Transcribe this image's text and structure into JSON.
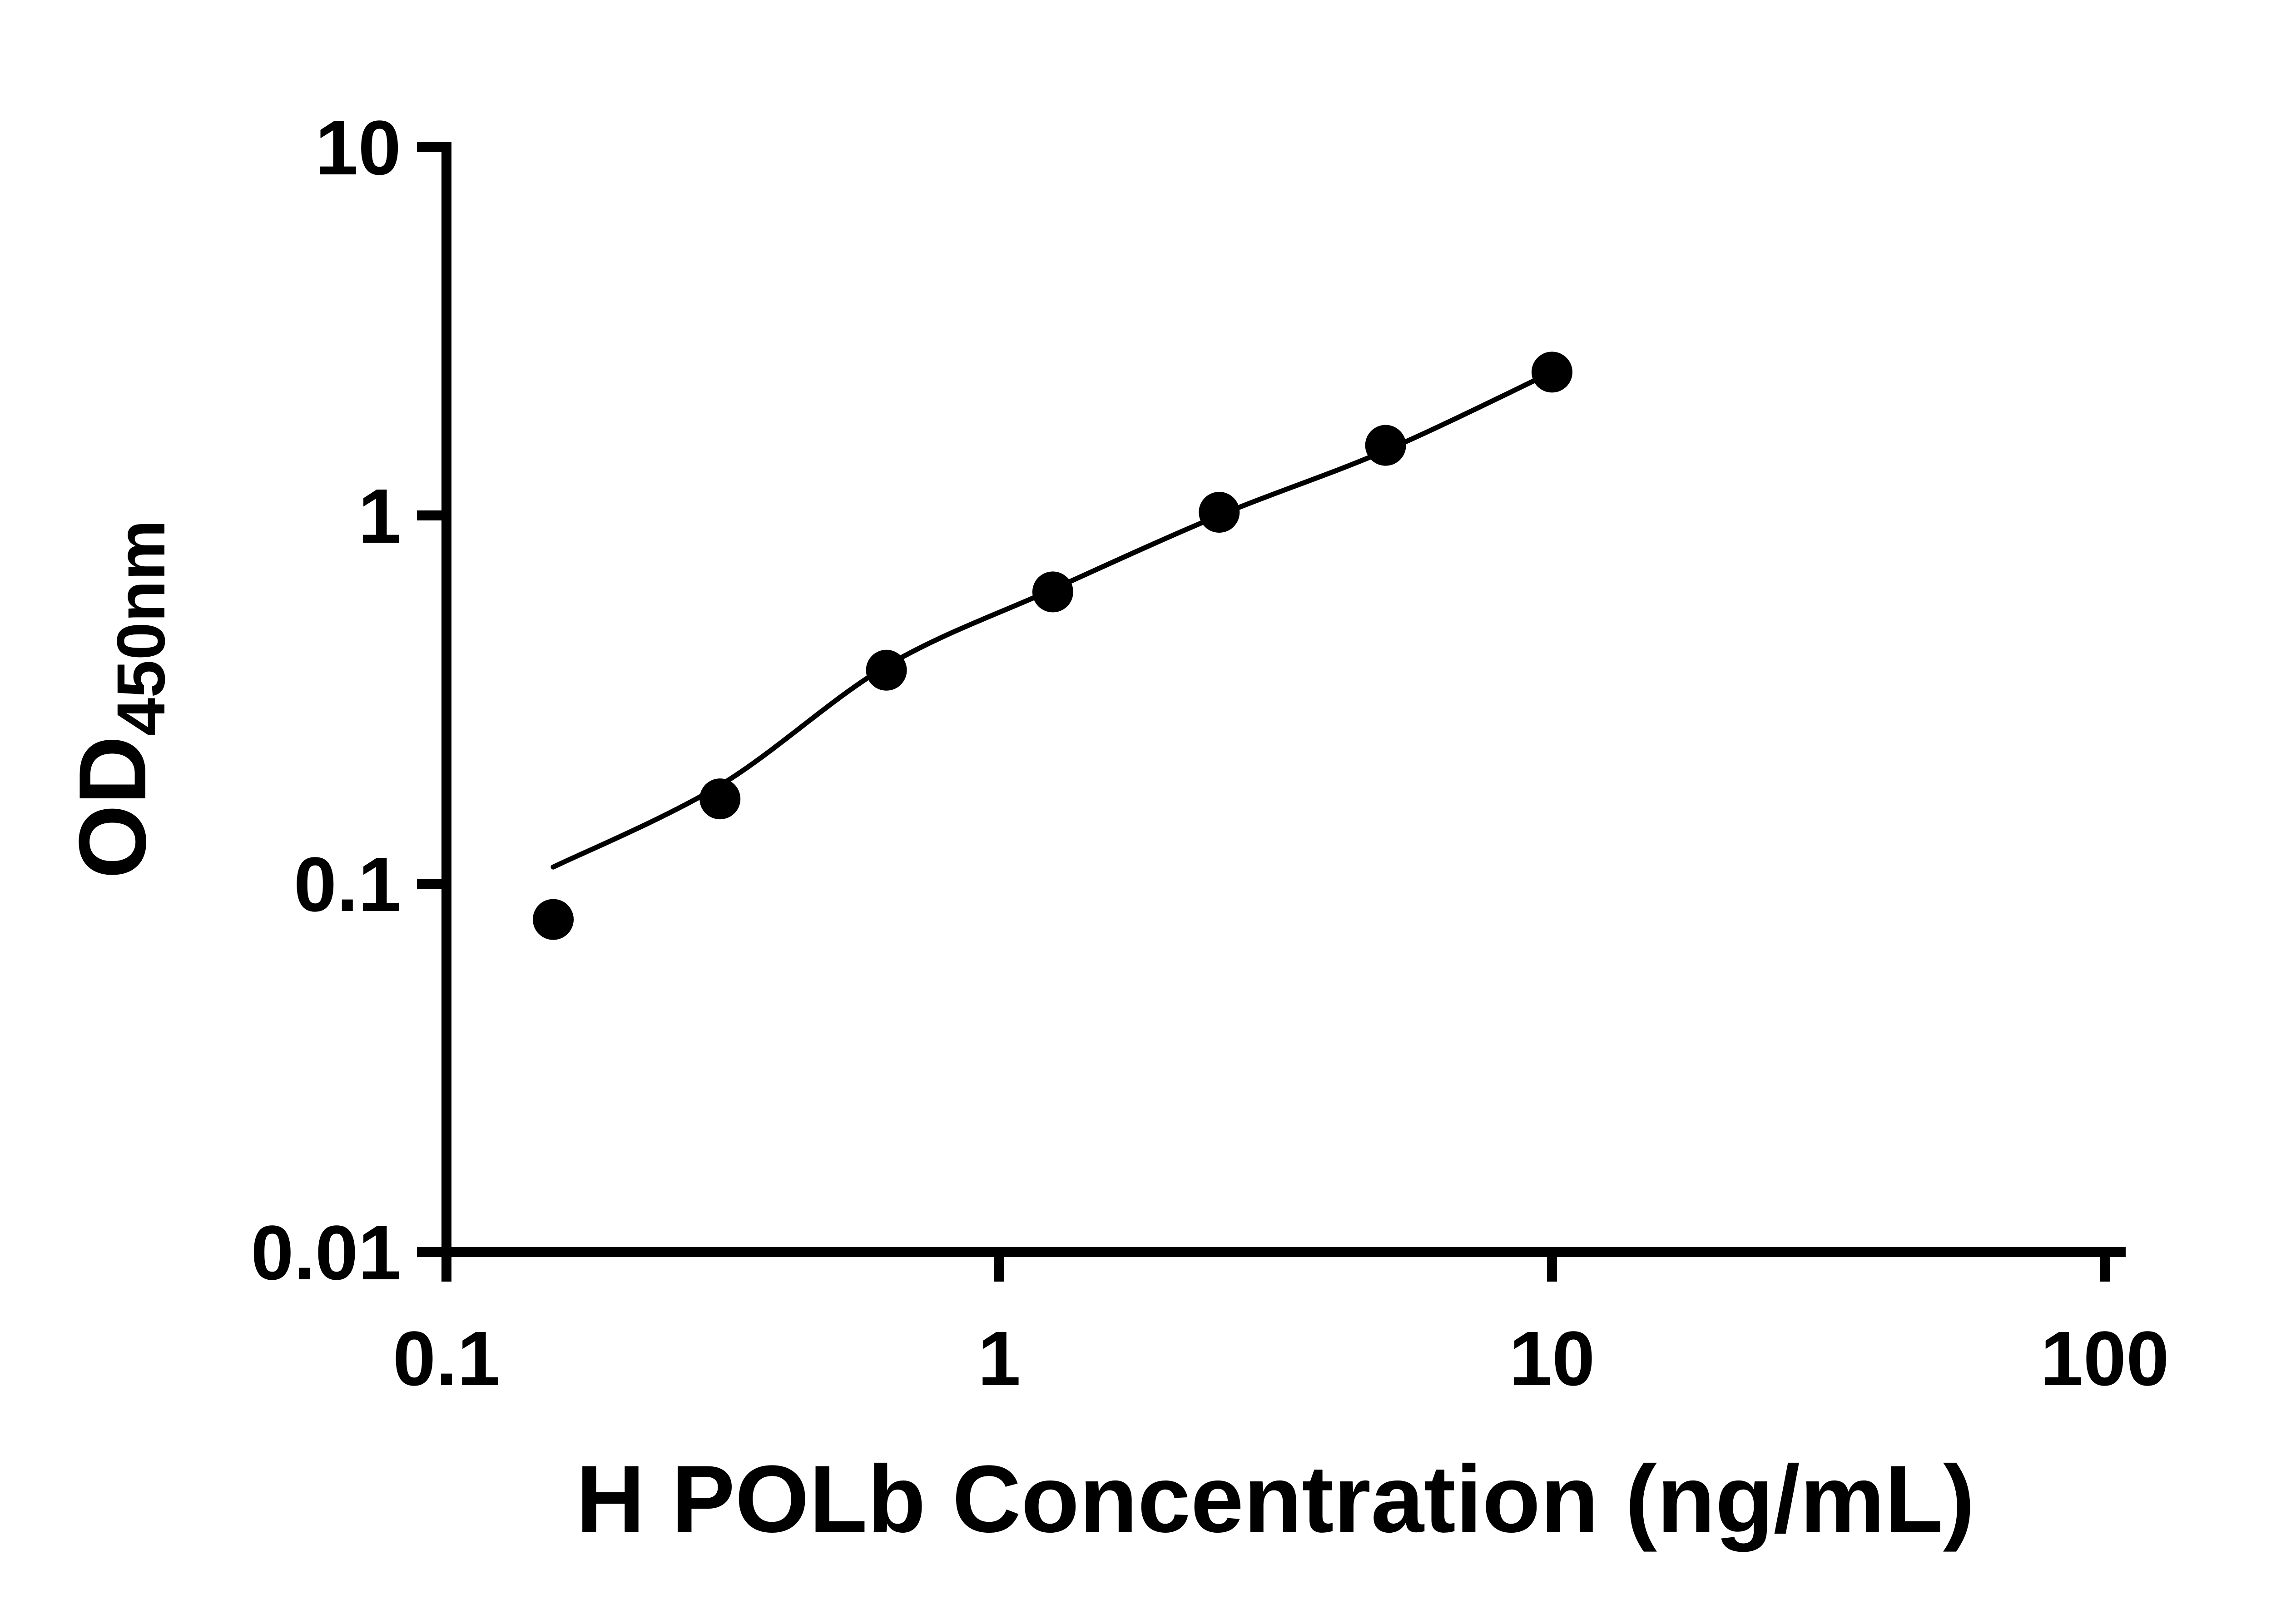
{
  "chart_data": {
    "type": "scatter",
    "title": "",
    "xlabel": "H POLb Concentration (ng/mL)",
    "ylabel": "OD",
    "ylabel_subscript": "450nm",
    "x_scale": "log10",
    "y_scale": "log10",
    "xlim": [
      0.1,
      100
    ],
    "ylim": [
      0.01,
      10
    ],
    "x_ticks": [
      0.1,
      1,
      10,
      100
    ],
    "x_tick_labels": [
      "0.1",
      "1",
      "10",
      "100"
    ],
    "y_ticks": [
      0.01,
      0.1,
      1,
      10
    ],
    "y_tick_labels": [
      "0.01",
      "0.1",
      "1",
      "10"
    ],
    "grid": false,
    "legend": "none",
    "axis_color": "#000000",
    "background_color": "#ffffff",
    "series": [
      {
        "name": "standard-curve-fit",
        "type": "line",
        "color": "#000000",
        "x": [
          0.156,
          0.3125,
          0.625,
          1.25,
          2.5,
          5,
          10
        ],
        "y": [
          0.111,
          0.185,
          0.39,
          0.63,
          1.0,
          1.5,
          2.45
        ]
      },
      {
        "name": "standard-points",
        "type": "scatter",
        "marker": "filled-circle",
        "color": "#000000",
        "x": [
          0.156,
          0.3125,
          0.625,
          1.25,
          2.5,
          5,
          10
        ],
        "y": [
          0.08,
          0.17,
          0.38,
          0.62,
          1.02,
          1.55,
          2.45
        ]
      }
    ]
  }
}
